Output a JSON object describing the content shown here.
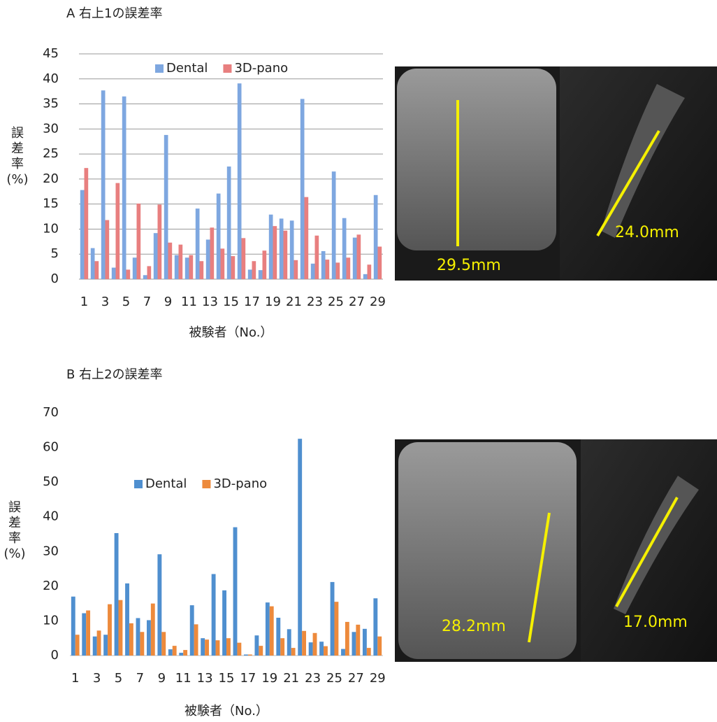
{
  "chart_data": [
    {
      "type": "bar",
      "title": "A  右上1の誤差率",
      "ylabel": "誤差率(%)",
      "xlabel": "被験者（No.）",
      "categories": [
        "1",
        null,
        "3",
        null,
        "5",
        null,
        "7",
        null,
        "9",
        null,
        "11",
        null,
        "13",
        null,
        "15",
        null,
        "17",
        null,
        "19",
        null,
        "21",
        null,
        "23",
        null,
        "25",
        null,
        "27",
        null,
        "29"
      ],
      "series": [
        {
          "name": "Dental",
          "color": "#7ea7e0",
          "values": [
            17.8,
            6.2,
            37.7,
            2.3,
            36.5,
            4.3,
            0.8,
            9.2,
            28.8,
            4.8,
            4.3,
            14.1,
            7.9,
            17.1,
            22.5,
            39.1,
            1.9,
            1.8,
            12.9,
            12.1,
            11.7,
            36.0,
            3.1,
            5.6,
            21.5,
            12.2,
            8.3,
            1.0,
            16.8
          ]
        },
        {
          "name": "3D-pano",
          "color": "#e87f7f",
          "values": [
            22.2,
            3.6,
            11.8,
            19.2,
            1.9,
            15.1,
            2.6,
            14.9,
            7.3,
            6.9,
            4.8,
            3.6,
            10.3,
            6.1,
            4.6,
            8.2,
            3.6,
            5.7,
            10.6,
            9.7,
            3.8,
            16.4,
            8.7,
            3.9,
            3.3,
            4.3,
            8.9,
            2.9,
            6.5
          ]
        }
      ],
      "ylim": [
        0,
        45
      ],
      "yticks": [
        0,
        5,
        10,
        15,
        20,
        25,
        30,
        35,
        40,
        45
      ],
      "grid": true,
      "legend": "top",
      "annotations": [
        "29.5mm",
        "24.0mm"
      ]
    },
    {
      "type": "bar",
      "title": "B  右上2の誤差率",
      "ylabel": "誤差率(%)",
      "xlabel": "被験者（No.）",
      "categories": [
        "1",
        null,
        "3",
        null,
        "5",
        null,
        "7",
        null,
        "9",
        null,
        "11",
        null,
        "13",
        null,
        "15",
        null,
        "17",
        null,
        "19",
        null,
        "21",
        null,
        "23",
        null,
        "25",
        null,
        "27",
        null,
        "29"
      ],
      "series": [
        {
          "name": "Dental",
          "color": "#4f8fcf",
          "values": [
            17.0,
            12.2,
            5.5,
            6.0,
            35.3,
            20.8,
            10.8,
            10.2,
            29.2,
            1.8,
            0.8,
            14.5,
            5.0,
            23.5,
            18.8,
            37.0,
            0.3,
            5.8,
            15.3,
            10.9,
            7.6,
            62.5,
            3.8,
            4.0,
            21.2,
            1.9,
            6.8,
            7.7,
            16.5
          ]
        },
        {
          "name": "3D-pano",
          "color": "#ed8a3c",
          "values": [
            6.0,
            13.0,
            7.2,
            14.8,
            16.0,
            9.3,
            6.8,
            15.0,
            6.8,
            2.8,
            1.6,
            9.0,
            4.6,
            4.4,
            5.0,
            3.7,
            0.3,
            2.8,
            14.2,
            5.0,
            2.2,
            7.1,
            6.5,
            2.7,
            15.5,
            9.7,
            8.9,
            2.2,
            5.5
          ]
        }
      ],
      "ylim": [
        0,
        70
      ],
      "yticks": [
        0,
        10,
        20,
        30,
        40,
        50,
        60,
        70
      ],
      "grid": false,
      "legend": "center",
      "annotations": [
        "28.2mm",
        "17.0mm"
      ]
    }
  ]
}
